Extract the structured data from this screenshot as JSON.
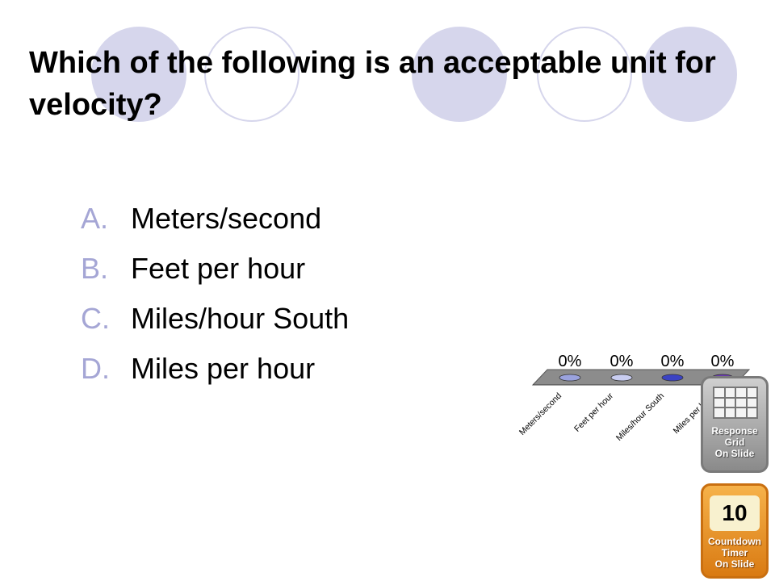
{
  "slide": {
    "question": "Which of the following is an acceptable unit for velocity?",
    "answers": [
      {
        "letter": "A.",
        "text": "Meters/second"
      },
      {
        "letter": "B.",
        "text": "Feet per hour"
      },
      {
        "letter": "C.",
        "text": "Miles/hour South"
      },
      {
        "letter": "D.",
        "text": "Miles per hour"
      }
    ],
    "colors": {
      "accent": "#a5a6d5",
      "decoration": "#d6d6ec"
    }
  },
  "chart_data": {
    "type": "bar",
    "categories": [
      "Meters/second",
      "Feet per hour",
      "Miles/hour South",
      "Miles per hour"
    ],
    "values": [
      0,
      0,
      0,
      0
    ],
    "value_labels": [
      "0%",
      "0%",
      "0%",
      "0%"
    ],
    "ylim": [
      0,
      100
    ],
    "colors": [
      "#9aa2dd",
      "#c9cdf0",
      "#3b43c4",
      "#6a3bb0"
    ]
  },
  "response_grid": {
    "label": "Response\nGrid\nOn Slide"
  },
  "countdown": {
    "value": "10",
    "label": "Countdown\nTimer\nOn Slide"
  }
}
